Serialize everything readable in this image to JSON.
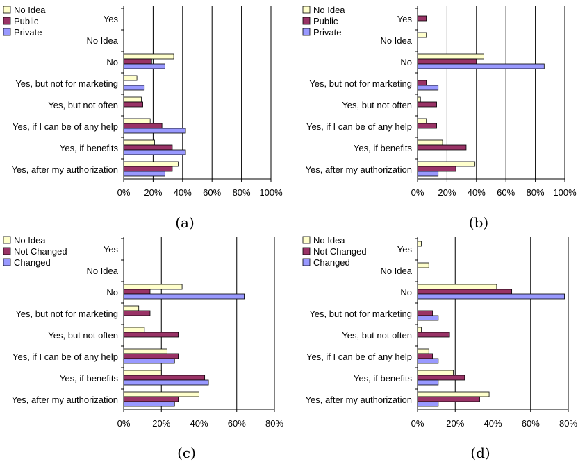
{
  "categories": [
    "Yes",
    "No Idea",
    "No",
    "Yes, but not for marketing",
    "Yes, but not often",
    "Yes, if I can be of any help",
    "Yes, if benefits",
    "Yes, after my authorization"
  ],
  "colors": {
    "no_idea": "#ffffcc",
    "middle": "#993366",
    "last": "#9999ff"
  },
  "chart_data": [
    {
      "type": "bar",
      "orientation": "horizontal",
      "caption": "(a)",
      "categories": [
        "Yes",
        "No Idea",
        "No",
        "Yes, but not for marketing",
        "Yes, but not often",
        "Yes, if I can be of any help",
        "Yes, if benefits",
        "Yes, after my authorization"
      ],
      "xlim": [
        0,
        100
      ],
      "xticks": [
        "0%",
        "20%",
        "40%",
        "60%",
        "80%",
        "100%"
      ],
      "legend_position": "top-left",
      "series": [
        {
          "name": "No Idea",
          "values": [
            0,
            0,
            34,
            9,
            12,
            18,
            21,
            37
          ]
        },
        {
          "name": "Public",
          "values": [
            0,
            0,
            19,
            0,
            13,
            26,
            33,
            33
          ]
        },
        {
          "name": "Private",
          "values": [
            0,
            0,
            28,
            14,
            0,
            42,
            42,
            28
          ]
        }
      ]
    },
    {
      "type": "bar",
      "orientation": "horizontal",
      "caption": "(b)",
      "categories": [
        "Yes",
        "No Idea",
        "No",
        "Yes, but not for marketing",
        "Yes, but not often",
        "Yes, if I can be of any help",
        "Yes, if benefits",
        "Yes, after my authorization"
      ],
      "xlim": [
        0,
        100
      ],
      "xticks": [
        "0%",
        "20%",
        "40%",
        "60%",
        "80%",
        "100%"
      ],
      "legend_position": "top-left",
      "series": [
        {
          "name": "No Idea",
          "values": [
            0,
            6,
            45,
            0,
            2,
            6,
            17,
            39
          ]
        },
        {
          "name": "Public",
          "values": [
            6,
            0,
            40,
            6,
            13,
            13,
            33,
            26
          ]
        },
        {
          "name": "Private",
          "values": [
            0,
            0,
            86,
            14,
            0,
            0,
            0,
            14
          ]
        }
      ]
    },
    {
      "type": "bar",
      "orientation": "horizontal",
      "caption": "(c)",
      "categories": [
        "Yes",
        "No Idea",
        "No",
        "Yes, but not for marketing",
        "Yes, but not often",
        "Yes, if I can be of any help",
        "Yes, if benefits",
        "Yes, after my authorization"
      ],
      "xlim": [
        0,
        80
      ],
      "xticks": [
        "0%",
        "20%",
        "40%",
        "60%",
        "80%"
      ],
      "legend_position": "top-left",
      "series": [
        {
          "name": "No Idea",
          "values": [
            0,
            0,
            31,
            8,
            11,
            23,
            20,
            40
          ]
        },
        {
          "name": "Not Changed",
          "values": [
            0,
            0,
            14,
            14,
            29,
            29,
            43,
            29
          ]
        },
        {
          "name": "Changed",
          "values": [
            0,
            0,
            64,
            0,
            0,
            27,
            45,
            27
          ]
        }
      ]
    },
    {
      "type": "bar",
      "orientation": "horizontal",
      "caption": "(d)",
      "categories": [
        "Yes",
        "No Idea",
        "No",
        "Yes, but not for marketing",
        "Yes, but not often",
        "Yes, if I can be of any help",
        "Yes, if benefits",
        "Yes, after my authorization"
      ],
      "xlim": [
        0,
        80
      ],
      "xticks": [
        "0%",
        "20%",
        "40%",
        "60%",
        "80%"
      ],
      "legend_position": "top-left",
      "series": [
        {
          "name": "No Idea",
          "values": [
            2,
            6,
            42,
            0,
            2,
            6,
            19,
            38
          ]
        },
        {
          "name": "Not Changed",
          "values": [
            0,
            0,
            50,
            8,
            17,
            8,
            25,
            33
          ]
        },
        {
          "name": "Changed",
          "values": [
            0,
            0,
            78,
            11,
            0,
            11,
            11,
            11
          ]
        }
      ]
    }
  ]
}
